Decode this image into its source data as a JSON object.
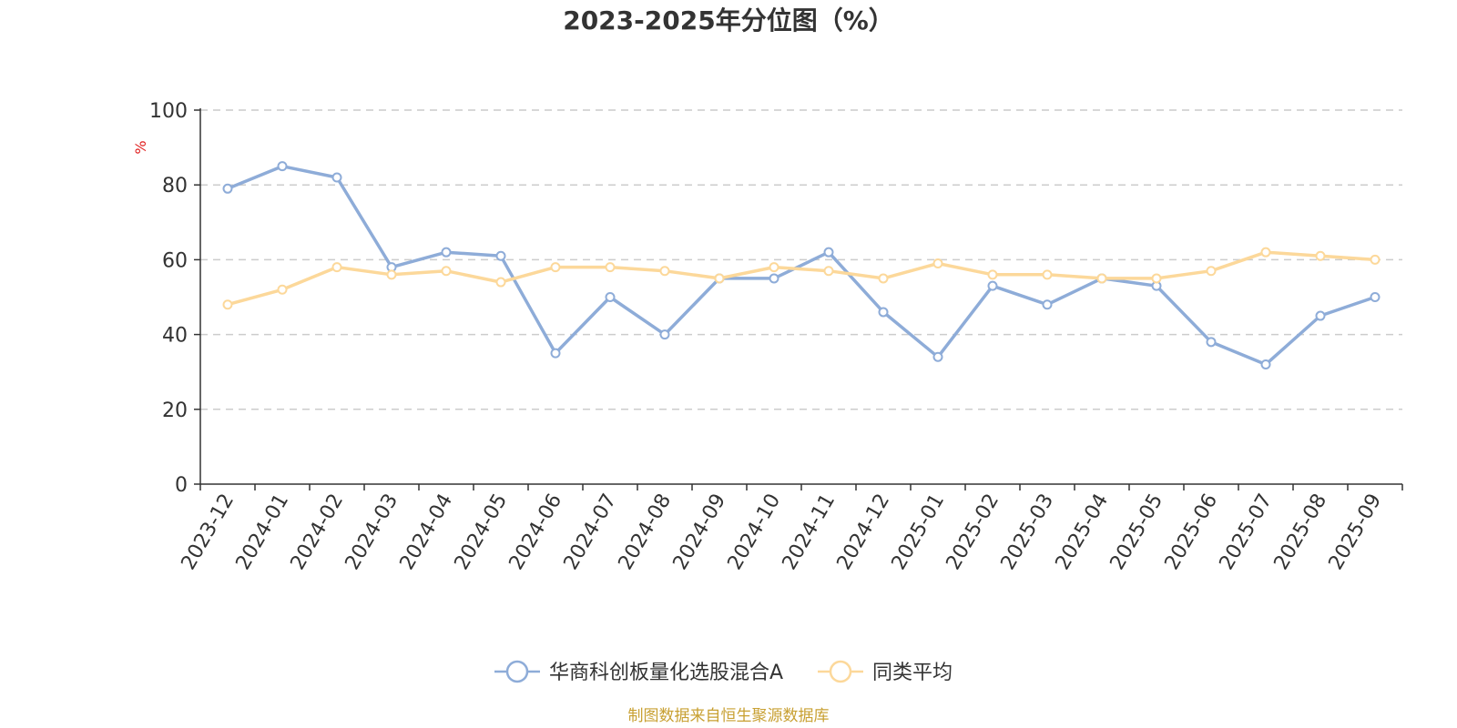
{
  "chart_data": {
    "type": "line",
    "title": "2023-2025年分位图（%）",
    "ylabel": "%",
    "xlabel": "",
    "ylim": [
      0,
      100
    ],
    "yticks": [
      "0",
      "20",
      "40",
      "60",
      "80",
      "100"
    ],
    "grid": true,
    "legend_position": "bottom-center",
    "categories": [
      "2023-12",
      "2024-01",
      "2024-02",
      "2024-03",
      "2024-04",
      "2024-05",
      "2024-06",
      "2024-07",
      "2024-08",
      "2024-09",
      "2024-10",
      "2024-11",
      "2024-12",
      "2025-01",
      "2025-02",
      "2025-03",
      "2025-04",
      "2025-05",
      "2025-06",
      "2025-07",
      "2025-08",
      "2025-09"
    ],
    "series": [
      {
        "name": "华商科创板量化选股混合A",
        "color": "#8eacd8",
        "values": [
          79,
          85,
          82,
          58,
          62,
          61,
          35,
          50,
          40,
          55,
          55,
          62,
          46,
          34,
          53,
          48,
          55,
          53,
          38,
          32,
          45,
          50
        ]
      },
      {
        "name": "同类平均",
        "color": "#fcd89a",
        "values": [
          48,
          52,
          58,
          56,
          57,
          54,
          58,
          58,
          57,
          55,
          58,
          57,
          55,
          59,
          56,
          56,
          55,
          55,
          57,
          62,
          61,
          60
        ]
      }
    ],
    "source": "制图数据来自恒生聚源数据库"
  },
  "colors": {
    "axis": "#333333",
    "grid": "#cccccc",
    "unit": "#e02020",
    "source": "#c8a032"
  }
}
